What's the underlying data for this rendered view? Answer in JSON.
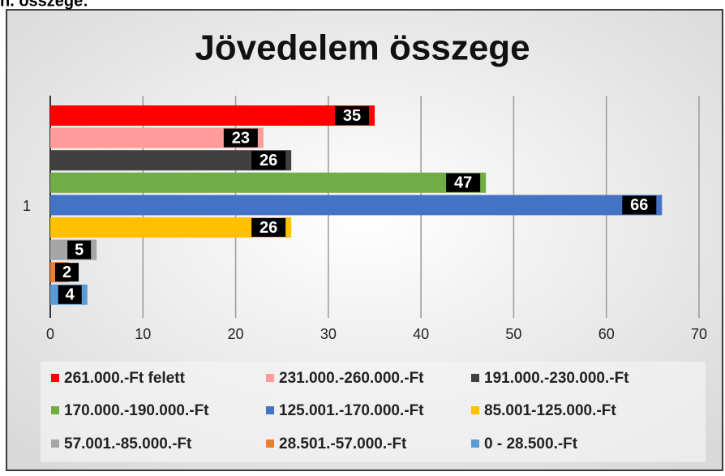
{
  "page_heading": "n. összege:",
  "chart_data": {
    "type": "bar",
    "orientation": "horizontal",
    "title": "Jövedelem összege",
    "categories": [
      "1"
    ],
    "series": [
      {
        "name": "261.000.-Ft felett",
        "color": "#ff0000",
        "values": [
          35
        ]
      },
      {
        "name": "231.000.-260.000.-Ft",
        "color": "#ff9b9b",
        "values": [
          23
        ]
      },
      {
        "name": "191.000.-230.000.-Ft",
        "color": "#404040",
        "values": [
          26
        ]
      },
      {
        "name": "170.000.-190.000.-Ft",
        "color": "#70ad47",
        "values": [
          47
        ]
      },
      {
        "name": "125.001.-170.000.-Ft",
        "color": "#4472c4",
        "values": [
          66
        ]
      },
      {
        "name": "85.001-125.000.-Ft",
        "color": "#ffc000",
        "values": [
          26
        ]
      },
      {
        "name": "57.001.-85.000.-Ft",
        "color": "#a5a5a5",
        "values": [
          5
        ]
      },
      {
        "name": "28.501.-57.000.-Ft",
        "color": "#ed7d31",
        "values": [
          2
        ]
      },
      {
        "name": "0 - 28.500.-Ft",
        "color": "#5b9bd5",
        "values": [
          4
        ]
      }
    ],
    "xlim": [
      0,
      70
    ],
    "xticks": [
      0,
      10,
      20,
      30,
      40,
      50,
      60,
      70
    ],
    "grid": true,
    "legend": "bottom"
  }
}
